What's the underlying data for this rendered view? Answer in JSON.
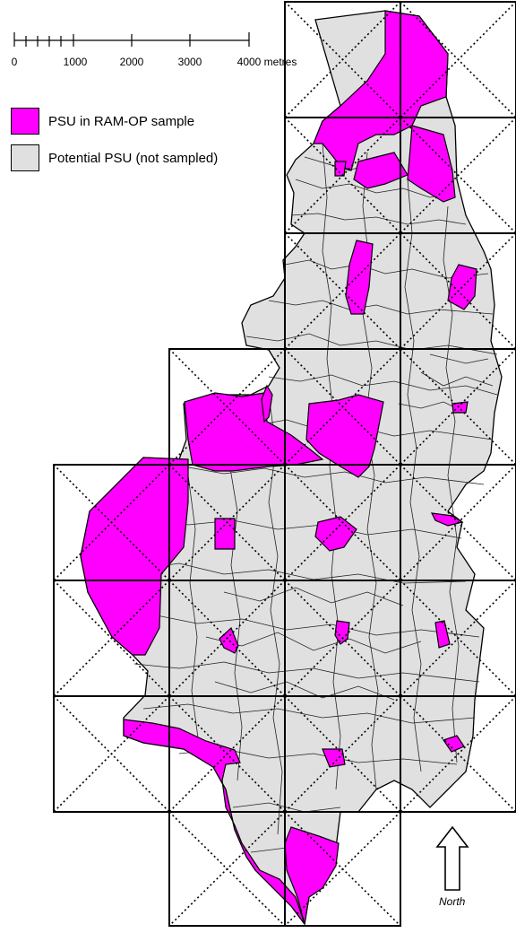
{
  "scale_bar": {
    "ticks": [
      "0",
      "1000",
      "2000",
      "3000",
      "4000 metres"
    ]
  },
  "legend": {
    "items": [
      {
        "label": "PSU in RAM-OP sample",
        "color": "#ff00ff"
      },
      {
        "label": "Potential PSU (not sampled)",
        "color": "#e0e0e0"
      }
    ]
  },
  "north_label": "North",
  "colors": {
    "sampled": "#ff00ff",
    "not_sampled": "#e0e0e0",
    "outline": "#000000"
  },
  "grid": {
    "tile_note": "2 km grid tiles, each crossed by dotted diagonals"
  }
}
